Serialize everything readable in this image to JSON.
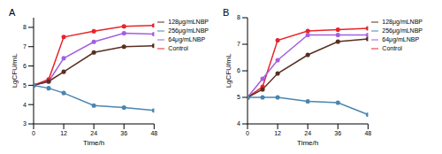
{
  "chart_data": [
    {
      "type": "line",
      "title": "A",
      "x_label": "Time/h",
      "y_label": "LgCFU/mL",
      "x": [
        0,
        6,
        12,
        24,
        36,
        48
      ],
      "xlim": [
        0,
        48
      ],
      "xticks": [
        0,
        12,
        24,
        36,
        48
      ],
      "ylim": [
        3,
        8.5
      ],
      "yticks": [
        3,
        4,
        5,
        6,
        7,
        8
      ],
      "marker": "circle",
      "legend": "right",
      "series": [
        {
          "name": "Control",
          "color": "#e8242a",
          "values": [
            5,
            5.3,
            7.5,
            7.8,
            8.05,
            8.1
          ]
        },
        {
          "name": "64μg/mLNBP",
          "color": "#a45fe0",
          "values": [
            5,
            5.2,
            6.4,
            7.25,
            7.7,
            7.65
          ]
        },
        {
          "name": "128μg/mLNBP",
          "color": "#5a2e22",
          "values": [
            5,
            5.2,
            5.7,
            6.7,
            7.0,
            7.05
          ]
        },
        {
          "name": "256μg/mLNBP",
          "color": "#4a86b0",
          "values": [
            5,
            4.85,
            4.6,
            3.95,
            3.85,
            3.7
          ]
        }
      ]
    },
    {
      "type": "line",
      "title": "B",
      "x_label": "Time/h",
      "y_label": "LgCFU/mL",
      "x": [
        0,
        6,
        12,
        24,
        36,
        48
      ],
      "xlim": [
        0,
        48
      ],
      "xticks": [
        0,
        12,
        24,
        36,
        48
      ],
      "ylim": [
        4,
        8
      ],
      "yticks": [
        4,
        5,
        6,
        7,
        8
      ],
      "marker": "circle",
      "legend": "right",
      "series": [
        {
          "name": "Control",
          "color": "#e8242a",
          "values": [
            5,
            5.4,
            7.15,
            7.5,
            7.55,
            7.6
          ]
        },
        {
          "name": "64μg/mLNBP",
          "color": "#a45fe0",
          "values": [
            5,
            5.7,
            6.4,
            7.35,
            7.35,
            7.35
          ]
        },
        {
          "name": "128μg/mLNBP",
          "color": "#5a2e22",
          "values": [
            5,
            5.3,
            5.9,
            6.6,
            7.1,
            7.2
          ]
        },
        {
          "name": "256μg/mLNBP",
          "color": "#4a86b0",
          "values": [
            5,
            5.0,
            5.0,
            4.85,
            4.8,
            4.35
          ]
        }
      ]
    }
  ]
}
